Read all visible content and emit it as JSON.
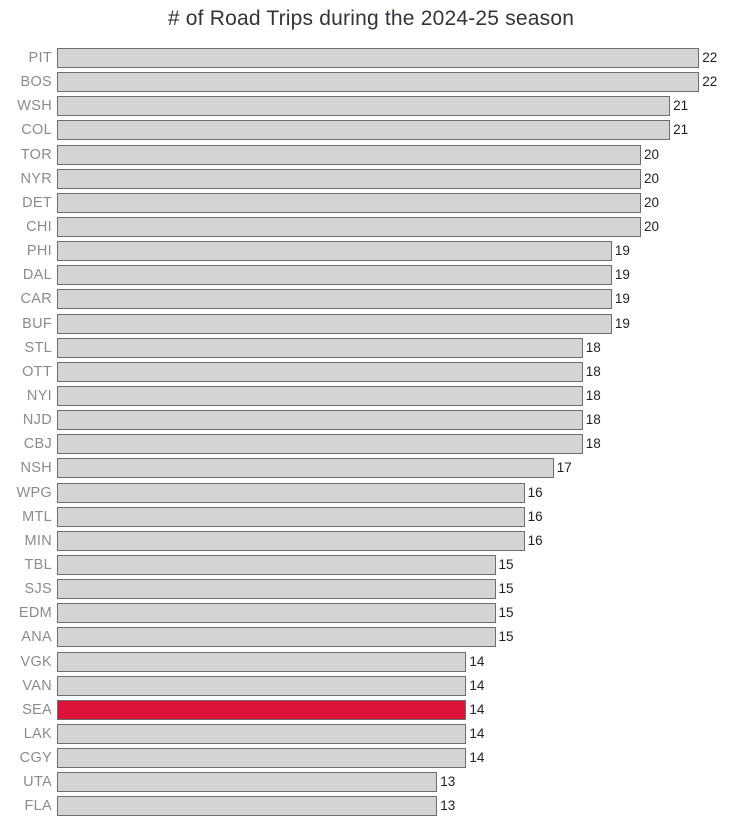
{
  "title": "# of Road Trips during the 2024-25 season",
  "colors": {
    "background": "#ffffff",
    "bar_fill": "#d4d4d4",
    "bar_edge": "#6e6e6e",
    "highlight_fill": "#dc143c",
    "tick_label_color": "#878c91",
    "value_label_color": "#1f1f1f",
    "title_color": "#33343a"
  },
  "chart_data": {
    "type": "bar",
    "orientation": "horizontal",
    "title": "# of Road Trips during the 2024-25 season",
    "xlabel": "",
    "ylabel": "",
    "xlim": [
      0,
      22
    ],
    "grid": false,
    "legend": false,
    "value_labels_shown": true,
    "highlighted_category": "SEA",
    "categories": [
      "PIT",
      "BOS",
      "WSH",
      "COL",
      "TOR",
      "NYR",
      "DET",
      "CHI",
      "PHI",
      "DAL",
      "CAR",
      "BUF",
      "STL",
      "OTT",
      "NYI",
      "NJD",
      "CBJ",
      "NSH",
      "WPG",
      "MTL",
      "MIN",
      "TBL",
      "SJS",
      "EDM",
      "ANA",
      "VGK",
      "VAN",
      "SEA",
      "LAK",
      "CGY",
      "UTA",
      "FLA"
    ],
    "values": [
      22,
      22,
      21,
      21,
      20,
      20,
      20,
      20,
      19,
      19,
      19,
      19,
      18,
      18,
      18,
      18,
      18,
      17,
      16,
      16,
      16,
      15,
      15,
      15,
      15,
      14,
      14,
      14,
      14,
      14,
      13,
      13
    ]
  }
}
